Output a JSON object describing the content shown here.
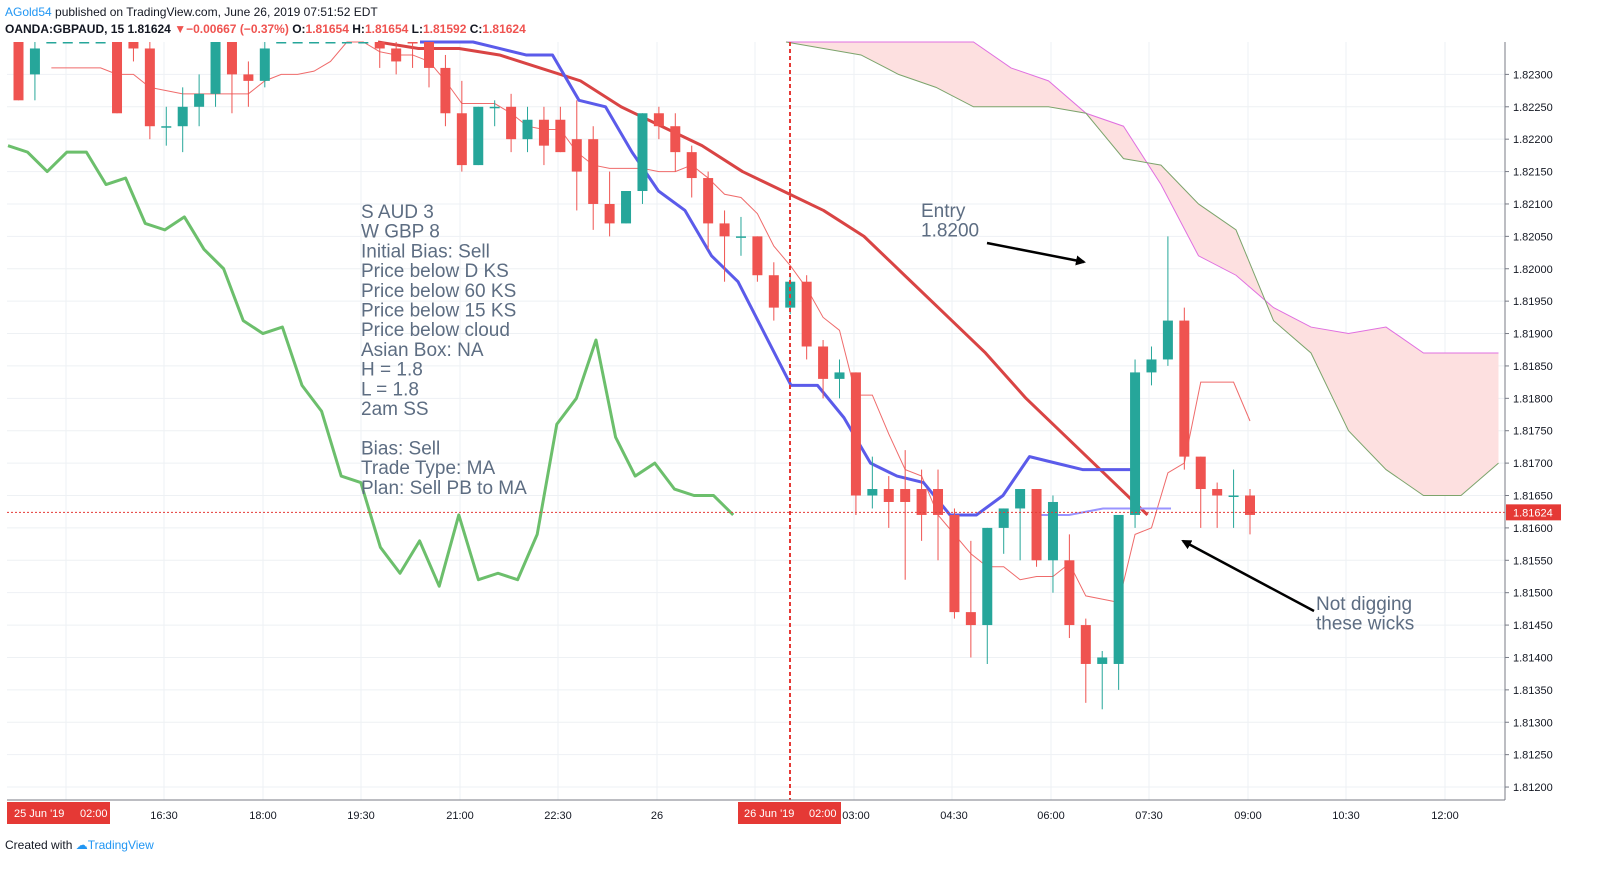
{
  "header": {
    "author": "AGold54",
    "published_text": " published on TradingView.com, June 26, 2019 07:51:52 EDT",
    "symbol": "OANDA:GBPAUD, 15",
    "last": "1.81624",
    "change": "−0.00667 (−0.37%)",
    "o_label": "O:",
    "o_value": "1.81654",
    "h_label": "H:",
    "h_value": "1.81654",
    "l_label": "L:",
    "l_value": "1.81592",
    "c_label": "C:",
    "c_value": "1.81624"
  },
  "footer": {
    "created_with": "Created with",
    "brand": "TradingView"
  },
  "annotations": {
    "plan_lines": [
      "S AUD 3",
      "W GBP 8",
      "Initial Bias: Sell",
      "Price below D KS",
      "Price below 60 KS",
      "Price below 15 KS",
      "Price below cloud",
      "Asian Box: NA",
      "H = 1.8",
      "L = 1.8",
      "2am SS",
      "",
      "Bias: Sell",
      "Trade Type: MA",
      "Plan:  Sell PB to MA"
    ],
    "entry_lines": [
      "Entry",
      "1.8200"
    ],
    "wick_lines": [
      "Not digging",
      "these wicks"
    ]
  },
  "colors": {
    "up": "#26a69a",
    "down": "#ef5350",
    "kijun": "#5b5bea",
    "ma": "#d94444",
    "chikou": "#6cbf6c",
    "cloud": "#fde0e0",
    "span_a": "#e070e0",
    "span_b": "#7ca46c",
    "grid": "#eef1f4",
    "vline": "#e53935"
  },
  "chart_data": {
    "type": "candlestick",
    "symbol": "OANDA:GBPAUD",
    "timeframe": "15",
    "ylim": [
      1.8118,
      1.8235
    ],
    "y_ticks": [
      "1.82300",
      "1.82250",
      "1.82200",
      "1.82150",
      "1.82100",
      "1.82050",
      "1.82000",
      "1.81950",
      "1.81900",
      "1.81850",
      "1.81800",
      "1.81750",
      "1.81700",
      "1.81650",
      "1.81624",
      "1.81600",
      "1.81550",
      "1.81500",
      "1.81450",
      "1.81400",
      "1.81350",
      "1.81300",
      "1.81250",
      "1.81200"
    ],
    "current_price": "1.81624",
    "x_ticks": [
      "25 Jun '19",
      "02:00",
      "16:30",
      "18:00",
      "19:30",
      "21:00",
      "22:30",
      "26",
      "26 Jun '19",
      "02:00",
      "03:00",
      "04:30",
      "06:00",
      "07:30",
      "09:00",
      "10:30",
      "12:00"
    ],
    "candles": [
      [
        1.8236,
        1.8236,
        1.8226,
        1.8226
      ],
      [
        1.823,
        1.8236,
        1.8226,
        1.8234
      ],
      [
        1.8236,
        1.8236,
        1.8236,
        1.8236
      ],
      [
        1.8236,
        1.8236,
        1.8236,
        1.8236
      ],
      [
        1.8236,
        1.8236,
        1.8236,
        1.8236
      ],
      [
        1.8236,
        1.8236,
        1.8236,
        1.8236
      ],
      [
        1.8236,
        1.8236,
        1.8224,
        1.8224
      ],
      [
        1.8236,
        1.8236,
        1.8232,
        1.8234
      ],
      [
        1.8234,
        1.8236,
        1.822,
        1.8222
      ],
      [
        1.8222,
        1.8225,
        1.8219,
        1.8222
      ],
      [
        1.8222,
        1.8228,
        1.8218,
        1.8225
      ],
      [
        1.8225,
        1.823,
        1.8222,
        1.8227
      ],
      [
        1.8227,
        1.8236,
        1.8225,
        1.8236
      ],
      [
        1.8236,
        1.8236,
        1.8224,
        1.823
      ],
      [
        1.823,
        1.8232,
        1.8225,
        1.8229
      ],
      [
        1.8229,
        1.8236,
        1.8228,
        1.8234
      ],
      [
        1.8236,
        1.8236,
        1.8236,
        1.8236
      ],
      [
        1.8236,
        1.8236,
        1.8236,
        1.8236
      ],
      [
        1.8236,
        1.8236,
        1.8236,
        1.8236
      ],
      [
        1.8236,
        1.8236,
        1.8236,
        1.8236
      ],
      [
        1.8236,
        1.8236,
        1.8236,
        1.8236
      ],
      [
        1.8236,
        1.8236,
        1.8236,
        1.8236
      ],
      [
        1.8236,
        1.8236,
        1.8231,
        1.8234
      ],
      [
        1.8234,
        1.8236,
        1.823,
        1.8232
      ],
      [
        1.8236,
        1.8236,
        1.8231,
        1.8235
      ],
      [
        1.8235,
        1.8236,
        1.8228,
        1.8231
      ],
      [
        1.8231,
        1.8233,
        1.8222,
        1.8224
      ],
      [
        1.8224,
        1.8229,
        1.8215,
        1.8216
      ],
      [
        1.8216,
        1.8225,
        1.8216,
        1.8225
      ],
      [
        1.8225,
        1.8226,
        1.8222,
        1.8225
      ],
      [
        1.8225,
        1.8227,
        1.8218,
        1.822
      ],
      [
        1.822,
        1.8225,
        1.8218,
        1.8223
      ],
      [
        1.8223,
        1.8225,
        1.8216,
        1.8219
      ],
      [
        1.8223,
        1.8225,
        1.8218,
        1.8218
      ],
      [
        1.822,
        1.8226,
        1.8209,
        1.8215
      ],
      [
        1.822,
        1.8222,
        1.8206,
        1.821
      ],
      [
        1.821,
        1.8215,
        1.8205,
        1.8207
      ],
      [
        1.8207,
        1.8212,
        1.8207,
        1.8212
      ],
      [
        1.8212,
        1.8224,
        1.821,
        1.8224
      ],
      [
        1.8224,
        1.8225,
        1.822,
        1.8222
      ],
      [
        1.8222,
        1.8224,
        1.8215,
        1.8218
      ],
      [
        1.8218,
        1.8219,
        1.8211,
        1.8214
      ],
      [
        1.8214,
        1.8215,
        1.8203,
        1.8207
      ],
      [
        1.8207,
        1.8209,
        1.8198,
        1.8205
      ],
      [
        1.8205,
        1.8208,
        1.8202,
        1.8205
      ],
      [
        1.8205,
        1.8205,
        1.8198,
        1.8199
      ],
      [
        1.8199,
        1.8201,
        1.8192,
        1.8194
      ],
      [
        1.8194,
        1.8199,
        1.8193,
        1.8198
      ],
      [
        1.8198,
        1.8199,
        1.8186,
        1.8188
      ],
      [
        1.8188,
        1.8189,
        1.818,
        1.8183
      ],
      [
        1.8183,
        1.8186,
        1.818,
        1.8184
      ],
      [
        1.8184,
        1.8184,
        1.8162,
        1.8165
      ],
      [
        1.8165,
        1.8171,
        1.8163,
        1.8166
      ],
      [
        1.8166,
        1.8168,
        1.816,
        1.8164
      ],
      [
        1.8166,
        1.8172,
        1.8152,
        1.8164
      ],
      [
        1.8166,
        1.8169,
        1.8158,
        1.8162
      ],
      [
        1.8166,
        1.8169,
        1.8155,
        1.8162
      ],
      [
        1.8162,
        1.8163,
        1.8146,
        1.8147
      ],
      [
        1.8147,
        1.8158,
        1.814,
        1.8145
      ],
      [
        1.8145,
        1.816,
        1.8139,
        1.816
      ],
      [
        1.816,
        1.8163,
        1.8156,
        1.8163
      ],
      [
        1.8163,
        1.8165,
        1.8155,
        1.8166
      ],
      [
        1.8166,
        1.8166,
        1.8154,
        1.8155
      ],
      [
        1.8155,
        1.8165,
        1.815,
        1.8164
      ],
      [
        1.8155,
        1.8159,
        1.8143,
        1.8145
      ],
      [
        1.8145,
        1.8146,
        1.8133,
        1.8139
      ],
      [
        1.8139,
        1.8141,
        1.8132,
        1.814
      ],
      [
        1.8139,
        1.8162,
        1.8135,
        1.8162
      ],
      [
        1.8162,
        1.8186,
        1.816,
        1.8184
      ],
      [
        1.8184,
        1.8188,
        1.8182,
        1.8186
      ],
      [
        1.8186,
        1.8205,
        1.8185,
        1.8192
      ],
      [
        1.8192,
        1.8194,
        1.8169,
        1.8171
      ],
      [
        1.8171,
        1.8171,
        1.816,
        1.8166
      ],
      [
        1.8166,
        1.8167,
        1.816,
        1.8165
      ],
      [
        1.8165,
        1.8169,
        1.816,
        1.8165
      ],
      [
        1.8165,
        1.8166,
        1.8159,
        1.8162
      ]
    ],
    "kijun_sen": [
      1.8236,
      1.8236,
      1.8236,
      1.8234,
      1.8233,
      1.8233,
      1.8226,
      1.8225,
      1.8218,
      1.8212,
      1.8209,
      1.8202,
      1.8198,
      1.819,
      1.8182,
      1.8182,
      1.8177,
      1.817,
      1.8168,
      1.8167,
      1.8162,
      1.8162,
      1.8165,
      1.8171,
      1.817,
      1.8169,
      1.8169,
      1.8169
    ],
    "kijun_sen_to_now": [
      1.8162,
      1.8162,
      1.8163,
      1.8163,
      1.8163
    ],
    "moving_average": [
      1.8236,
      1.8234,
      1.8234,
      1.8233,
      1.8231,
      1.8229,
      1.8225,
      1.8222,
      1.8219,
      1.8215,
      1.8212,
      1.8209,
      1.8205,
      1.8199,
      1.8193,
      1.8187,
      1.818,
      1.8174,
      1.8168,
      1.8162
    ],
    "chikou_span": [
      1.8219,
      1.8218,
      1.8215,
      1.8218,
      1.8218,
      1.8213,
      1.8214,
      1.8207,
      1.8206,
      1.8208,
      1.8203,
      1.82,
      1.8192,
      1.819,
      1.8191,
      1.8182,
      1.8178,
      1.8168,
      1.8167,
      1.8157,
      1.8153,
      1.8158,
      1.8151,
      1.8162,
      1.8152,
      1.8153,
      1.8152,
      1.8159,
      1.8176,
      1.818,
      1.8189,
      1.8174,
      1.8168,
      1.817,
      1.8166,
      1.8165,
      1.8165,
      1.8162
    ],
    "cloud_span_a": [
      1.8236,
      1.8236,
      1.8236,
      1.8236,
      1.8236,
      1.8236,
      1.8231,
      1.8229,
      1.8224,
      1.8222,
      1.8213,
      1.8202,
      1.8199,
      1.8194,
      1.8191,
      1.819,
      1.8191,
      1.8187,
      1.8187,
      1.8187
    ],
    "cloud_span_b": [
      1.8236,
      1.8234,
      1.8233,
      1.823,
      1.8228,
      1.8225,
      1.8225,
      1.8225,
      1.8224,
      1.8217,
      1.8216,
      1.821,
      1.8206,
      1.8192,
      1.8187,
      1.8175,
      1.8169,
      1.8165,
      1.8165,
      1.817
    ]
  }
}
